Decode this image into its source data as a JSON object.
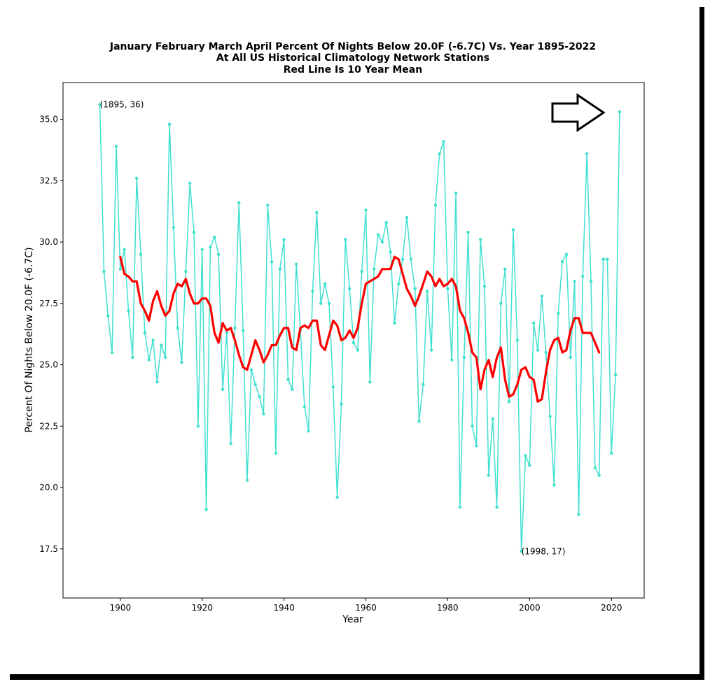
{
  "chart_data": {
    "type": "line",
    "title_lines": [
      "January February March April Percent Of Nights Below 20.0F (-6.7C) Vs. Year 1895-2022",
      "At All US Historical Climatology Network Stations",
      "Red Line Is 10 Year Mean"
    ],
    "xlabel": "Year",
    "ylabel": "Percent Of Nights Below 20.0F (-6.7C)",
    "xlim": [
      1886,
      2028
    ],
    "ylim": [
      15.5,
      36.5
    ],
    "xticks": [
      1900,
      1920,
      1940,
      1960,
      1980,
      2000,
      2020
    ],
    "yticks": [
      17.5,
      20.0,
      22.5,
      25.0,
      27.5,
      30.0,
      32.5,
      35.0
    ],
    "ytick_labels": [
      "17.5",
      "20.0",
      "22.5",
      "25.0",
      "27.5",
      "30.0",
      "32.5",
      "35.0"
    ],
    "grid": false,
    "annotations": [
      {
        "text": "(1895, 36)",
        "x": 1895,
        "y": 35.6
      },
      {
        "text": "(1998, 17)",
        "x": 1998,
        "y": 17.4
      }
    ],
    "series": [
      {
        "color": "#40e0d0",
        "marker": "dot",
        "x_start": 1895,
        "values": [
          35.6,
          28.8,
          27.0,
          25.5,
          33.9,
          28.9,
          29.7,
          27.2,
          25.3,
          32.6,
          29.5,
          26.3,
          25.2,
          26.0,
          24.3,
          25.8,
          25.3,
          34.8,
          30.6,
          26.5,
          25.1,
          28.8,
          32.4,
          30.4,
          22.5,
          29.7,
          19.1,
          29.8,
          30.2,
          29.5,
          24.0,
          26.3,
          21.8,
          26.5,
          31.6,
          26.4,
          20.3,
          24.8,
          24.2,
          23.7,
          23.0,
          31.5,
          29.2,
          21.4,
          28.9,
          30.1,
          24.4,
          24.0,
          29.1,
          26.4,
          23.3,
          22.3,
          28.0,
          31.2,
          27.5,
          28.3,
          27.5,
          24.1,
          19.6,
          23.4,
          30.1,
          28.1,
          25.9,
          25.6,
          28.8,
          31.3,
          24.3,
          28.9,
          30.3,
          30.0,
          30.8,
          29.6,
          26.7,
          28.3,
          29.3,
          31.0,
          29.3,
          28.1,
          22.7,
          24.2,
          28.0,
          25.6,
          31.5,
          33.6,
          34.1,
          28.1,
          25.2,
          32.0,
          19.2,
          25.3,
          30.4,
          22.5,
          21.7,
          30.1,
          28.2,
          20.5,
          22.8,
          19.2,
          27.5,
          28.9,
          23.5,
          30.5,
          26.0,
          17.4,
          21.3,
          20.9,
          26.7,
          25.6,
          27.8,
          25.5,
          22.9,
          20.1,
          27.1,
          29.2,
          29.5,
          25.3,
          28.4,
          18.9,
          28.6,
          33.6,
          28.4,
          20.8,
          20.5,
          29.3,
          29.3,
          21.4,
          24.6,
          35.3
        ]
      },
      {
        "color": "#ff0000",
        "marker": "none",
        "x_start": 1900,
        "values": [
          29.4,
          28.7,
          28.6,
          28.4,
          28.4,
          27.5,
          27.2,
          26.8,
          27.6,
          28.0,
          27.4,
          27.0,
          27.2,
          27.9,
          28.3,
          28.2,
          28.5,
          27.9,
          27.5,
          27.5,
          27.7,
          27.7,
          27.4,
          26.3,
          25.9,
          26.7,
          26.4,
          26.5,
          26.0,
          25.4,
          24.9,
          24.8,
          25.4,
          26.0,
          25.6,
          25.1,
          25.4,
          25.8,
          25.8,
          26.2,
          26.5,
          26.5,
          25.7,
          25.6,
          26.5,
          26.6,
          26.5,
          26.8,
          26.8,
          25.8,
          25.6,
          26.2,
          26.8,
          26.6,
          26.0,
          26.1,
          26.4,
          26.1,
          26.5,
          27.5,
          28.3,
          28.4,
          28.5,
          28.6,
          28.9,
          28.9,
          28.9,
          29.4,
          29.3,
          28.7,
          28.1,
          27.8,
          27.4,
          27.8,
          28.3,
          28.8,
          28.6,
          28.2,
          28.5,
          28.2,
          28.3,
          28.5,
          28.2,
          27.2,
          26.9,
          26.3,
          25.5,
          25.3,
          24.0,
          24.8,
          25.2,
          24.5,
          25.3,
          25.7,
          24.4,
          23.7,
          23.8,
          24.2,
          24.8,
          24.9,
          24.5,
          24.4,
          23.5,
          23.6,
          24.7,
          25.6,
          26.0,
          26.1,
          25.5,
          25.6,
          26.4,
          26.9,
          26.9,
          26.3,
          26.3,
          26.3,
          25.9,
          25.5
        ]
      }
    ]
  }
}
